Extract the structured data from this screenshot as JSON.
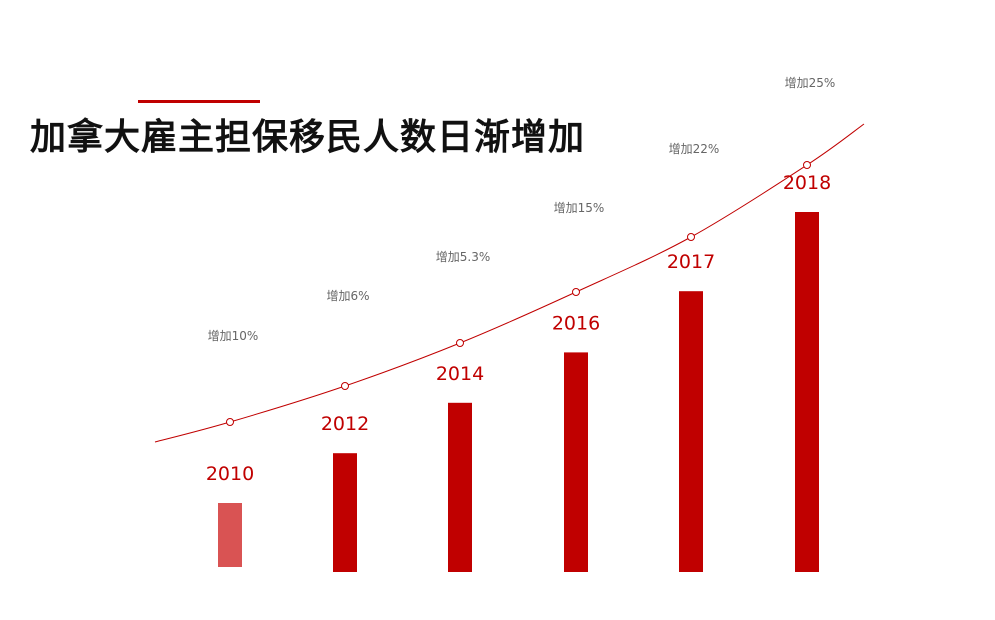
{
  "title": "加拿大雇主担保移民人数日渐增加",
  "colors": {
    "accent": "#c00000",
    "first_bar": "#d95353",
    "bar": "#c00000",
    "annotation": "#666666",
    "title": "#111111"
  },
  "chart_data": {
    "type": "bar",
    "title": "加拿大雇主担保移民人数日渐增加",
    "categories": [
      "2010",
      "2012",
      "2014",
      "2016",
      "2017",
      "2018"
    ],
    "values": [
      0.18,
      0.33,
      0.47,
      0.61,
      0.78,
      1.0
    ],
    "ylim": [
      0,
      1
    ],
    "annotations": [
      "增加10%",
      "增加6%",
      "增加5.3%",
      "增加15%",
      "增加22%",
      "增加25%"
    ],
    "trend_line": true,
    "grid": false,
    "legend": "none"
  }
}
